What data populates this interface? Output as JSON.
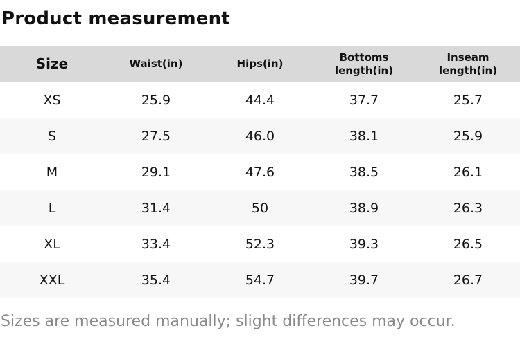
{
  "page": {
    "title": "Product measurement",
    "footer_note": "Sizes are measured manually; slight differences may occur."
  },
  "colors": {
    "header_bg": "#d9d9d9",
    "row_bg": "#ffffff",
    "row_alt_bg": "#f7f7f7",
    "title_text": "#111111",
    "cell_text": "#141414",
    "footer_text": "#8a8a8a"
  },
  "table": {
    "headers": [
      {
        "label": "Size"
      },
      {
        "label": "Waist(in)"
      },
      {
        "label": "Hips(in)"
      },
      {
        "label": "Bottoms\nlength(in)"
      },
      {
        "label": "Inseam\nlength(in)"
      }
    ],
    "rows": [
      {
        "size": "XS",
        "waist": "25.9",
        "hips": "44.4",
        "bottoms": "37.7",
        "inseam": "25.7"
      },
      {
        "size": "S",
        "waist": "27.5",
        "hips": "46.0",
        "bottoms": "38.1",
        "inseam": "25.9"
      },
      {
        "size": "M",
        "waist": "29.1",
        "hips": "47.6",
        "bottoms": "38.5",
        "inseam": "26.1"
      },
      {
        "size": "L",
        "waist": "31.4",
        "hips": "50",
        "bottoms": "38.9",
        "inseam": "26.3"
      },
      {
        "size": "XL",
        "waist": "33.4",
        "hips": "52.3",
        "bottoms": "39.3",
        "inseam": "26.5"
      },
      {
        "size": "XXL",
        "waist": "35.4",
        "hips": "54.7",
        "bottoms": "39.7",
        "inseam": "26.7"
      }
    ]
  },
  "chart_data": {
    "type": "table",
    "title": "Product measurement",
    "columns": [
      "Size",
      "Waist(in)",
      "Hips(in)",
      "Bottoms length(in)",
      "Inseam length(in)"
    ],
    "rows": [
      [
        "XS",
        25.9,
        44.4,
        37.7,
        25.7
      ],
      [
        "S",
        27.5,
        46.0,
        38.1,
        25.9
      ],
      [
        "M",
        29.1,
        47.6,
        38.5,
        26.1
      ],
      [
        "L",
        31.4,
        50,
        38.9,
        26.3
      ],
      [
        "XL",
        33.4,
        52.3,
        39.3,
        26.5
      ],
      [
        "XXL",
        35.4,
        54.7,
        39.7,
        26.7
      ]
    ],
    "footnote": "Sizes are measured manually; slight differences may occur."
  }
}
